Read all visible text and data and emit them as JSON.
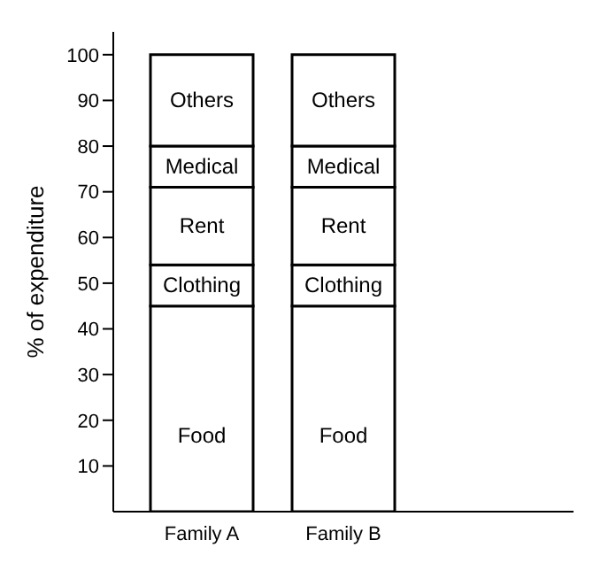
{
  "chart_data": {
    "type": "bar",
    "stacked": true,
    "ylabel": "% of expenditure",
    "categories": [
      "Family A",
      "Family B"
    ],
    "series": [
      {
        "name": "Food",
        "color": "#ffffff",
        "values": [
          45,
          45
        ]
      },
      {
        "name": "Clothing",
        "color": "#ffffff",
        "values": [
          9,
          9
        ]
      },
      {
        "name": "Rent",
        "color": "#ffffff",
        "values": [
          17,
          17
        ]
      },
      {
        "name": "Medical",
        "color": "#ffffff",
        "values": [
          9,
          9
        ]
      },
      {
        "name": "Others",
        "color": "#ffffff",
        "values": [
          20,
          20
        ]
      }
    ],
    "ylim": [
      0,
      105
    ],
    "yticks": [
      10,
      20,
      30,
      40,
      50,
      60,
      70,
      80,
      90,
      100
    ],
    "grid": false,
    "legend": false
  }
}
